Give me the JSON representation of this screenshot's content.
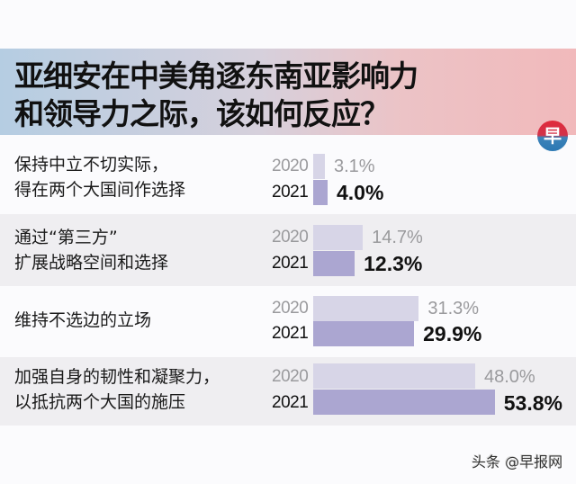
{
  "title_lines": [
    "亚细安在中美角逐东南亚影响力",
    "和领导力之际，该如何反应？"
  ],
  "logo_glyph": "早",
  "footer": "头条 @早报网",
  "colors": {
    "bar_2020": "#d7d5e7",
    "bar_2021": "#aba6d1",
    "banner_left": "#b5cde2",
    "banner_right": "#f1b9bb"
  },
  "rows": [
    {
      "label_lines": [
        "保持中立不切实际，",
        "得在两个大国间作选择"
      ],
      "y2020": "2020",
      "v2020": "3.1%",
      "y2021": "2021",
      "v2021": "4.0%"
    },
    {
      "label_lines": [
        "通过“第三方”",
        "扩展战略空间和选择"
      ],
      "y2020": "2020",
      "v2020": "14.7%",
      "y2021": "2021",
      "v2021": "12.3%"
    },
    {
      "label_lines": [
        "维持不选边的立场"
      ],
      "y2020": "2020",
      "v2020": "31.3%",
      "y2021": "2021",
      "v2021": "29.9%"
    },
    {
      "label_lines": [
        "加强自身的韧性和凝聚力，",
        "以抵抗两个大国的施压"
      ],
      "y2020": "2020",
      "v2020": "48.0%",
      "y2021": "2021",
      "v2021": "53.8%"
    }
  ],
  "chart_data": {
    "type": "bar",
    "orientation": "horizontal",
    "title": "亚细安在中美角逐东南亚影响力和领导力之际，该如何反应？",
    "categories": [
      "保持中立不切实际，得在两个大国间作选择",
      "通过“第三方”扩展战略空间和选择",
      "维持不选边的立场",
      "加强自身的韧性和凝聚力，以抵抗两个大国的施压"
    ],
    "series": [
      {
        "name": "2020",
        "values": [
          3.1,
          14.7,
          31.3,
          48.0
        ],
        "color": "#d7d5e7"
      },
      {
        "name": "2021",
        "values": [
          4.0,
          12.3,
          29.9,
          53.8
        ],
        "color": "#aba6d1"
      }
    ],
    "unit": "%",
    "xlabel": "",
    "ylabel": "",
    "grid": false,
    "legend": "inline year labels"
  }
}
